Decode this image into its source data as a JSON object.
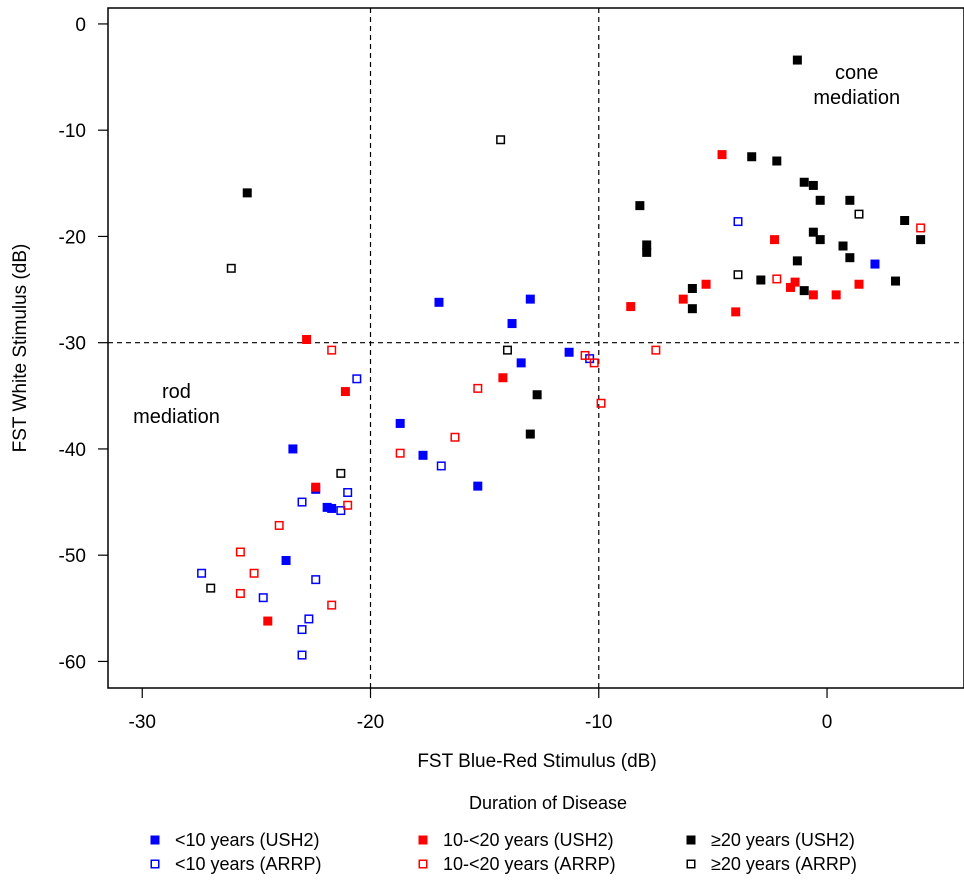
{
  "chart_data": {
    "type": "scatter",
    "xlabel": "FST Blue-Red Stimulus (dB)",
    "ylabel": "FST White Stimulus (dB)",
    "xlim": [
      -31.5,
      6
    ],
    "ylim": [
      -62.5,
      1.5
    ],
    "xticks": [
      -30,
      -20,
      -10,
      0
    ],
    "yticks": [
      0,
      -10,
      -20,
      -30,
      -40,
      -50,
      -60
    ],
    "reference_lines": {
      "x": [
        -20,
        -10
      ],
      "y": [
        -30
      ],
      "style": "dashed"
    },
    "annotations": [
      {
        "lines": [
          "cone",
          "mediation"
        ],
        "x": 1.3,
        "y": -5.2
      },
      {
        "lines": [
          "rod",
          "mediation"
        ],
        "x": -28.5,
        "y": -35.2
      }
    ],
    "legend": {
      "title": "Duration of Disease",
      "placement": "bottom",
      "entries": [
        "<10 years (USH2)",
        "10-<20 years (USH2)",
        "≥20 years (USH2)",
        "<10 years (ARRP)",
        "10-<20 years (ARRP)",
        "≥20 years (ARRP)"
      ]
    },
    "series": [
      {
        "name": "<10 years (USH2)",
        "color": "#0000ff",
        "marker": "filled-square",
        "points": [
          [
            -23.4,
            -40
          ],
          [
            -23.7,
            -50.5
          ],
          [
            -22.4,
            -43.8
          ],
          [
            -21.9,
            -45.5
          ],
          [
            -21.7,
            -45.6
          ],
          [
            -18.7,
            -37.6
          ],
          [
            -17.7,
            -40.6
          ],
          [
            -17.0,
            -26.2
          ],
          [
            -15.3,
            -43.5
          ],
          [
            -13.8,
            -28.2
          ],
          [
            -13.4,
            -31.9
          ],
          [
            -13.0,
            -25.9
          ],
          [
            -11.3,
            -30.9
          ],
          [
            2.1,
            -22.6
          ]
        ]
      },
      {
        "name": "<10 years (ARRP)",
        "color": "#0000ff",
        "marker": "open-square",
        "points": [
          [
            -20.6,
            -33.4
          ],
          [
            -16.9,
            -41.6
          ],
          [
            -21.0,
            -44.1
          ],
          [
            -21.3,
            -45.8
          ],
          [
            -23.0,
            -45
          ],
          [
            -22.4,
            -52.3
          ],
          [
            -24.7,
            -54
          ],
          [
            -22.7,
            -56
          ],
          [
            -23.0,
            -57
          ],
          [
            -23.0,
            -59.4
          ],
          [
            -27.4,
            -51.7
          ],
          [
            -10.4,
            -31.5
          ],
          [
            -3.9,
            -18.6
          ]
        ]
      },
      {
        "name": "10-<20 years (USH2)",
        "color": "#ff0000",
        "marker": "filled-square",
        "points": [
          [
            -22.8,
            -29.7
          ],
          [
            -21.1,
            -34.6
          ],
          [
            -22.4,
            -43.6
          ],
          [
            -24.5,
            -56.2
          ],
          [
            -14.2,
            -33.3
          ],
          [
            -8.6,
            -26.6
          ],
          [
            -6.3,
            -25.9
          ],
          [
            -5.3,
            -24.5
          ],
          [
            -4.6,
            -12.3
          ],
          [
            -4.0,
            -27.1
          ],
          [
            -2.3,
            -20.3
          ],
          [
            -1.6,
            -24.8
          ],
          [
            -1.4,
            -24.3
          ],
          [
            -0.6,
            -25.5
          ],
          [
            0.4,
            -25.5
          ],
          [
            1.4,
            -24.5
          ]
        ]
      },
      {
        "name": "10-<20 years (ARRP)",
        "color": "#ff0000",
        "marker": "open-square",
        "points": [
          [
            -21.7,
            -30.7
          ],
          [
            -24.0,
            -47.2
          ],
          [
            -21.0,
            -45.3
          ],
          [
            -25.7,
            -49.7
          ],
          [
            -25.1,
            -51.7
          ],
          [
            -25.7,
            -53.6
          ],
          [
            -21.7,
            -54.7
          ],
          [
            -18.7,
            -40.4
          ],
          [
            -16.3,
            -38.9
          ],
          [
            -15.3,
            -34.3
          ],
          [
            -10.6,
            -31.2
          ],
          [
            -10.2,
            -31.9
          ],
          [
            -9.9,
            -35.7
          ],
          [
            -7.5,
            -30.7
          ],
          [
            -2.2,
            -24
          ],
          [
            4.1,
            -19.2
          ]
        ]
      },
      {
        "name": "≥20 years (USH2)",
        "color": "#000000",
        "marker": "filled-square",
        "points": [
          [
            -25.4,
            -15.9
          ],
          [
            -12.7,
            -34.9
          ],
          [
            -13.0,
            -38.6
          ],
          [
            -8.2,
            -17.1
          ],
          [
            -7.9,
            -20.8
          ],
          [
            -7.9,
            -21.5
          ],
          [
            -5.9,
            -24.9
          ],
          [
            -5.9,
            -26.8
          ],
          [
            -3.3,
            -12.5
          ],
          [
            -2.9,
            -24.1
          ],
          [
            -2.2,
            -12.9
          ],
          [
            -1.3,
            -3.4
          ],
          [
            -1.3,
            -22.3
          ],
          [
            -1.0,
            -25.1
          ],
          [
            -1.0,
            -14.9
          ],
          [
            -0.6,
            -15.2
          ],
          [
            -0.6,
            -19.6
          ],
          [
            -0.3,
            -16.6
          ],
          [
            -0.3,
            -20.3
          ],
          [
            0.7,
            -20.9
          ],
          [
            1.0,
            -16.6
          ],
          [
            1.0,
            -22
          ],
          [
            3.0,
            -24.2
          ],
          [
            3.4,
            -18.5
          ],
          [
            4.1,
            -20.3
          ]
        ]
      },
      {
        "name": "≥20 years (ARRP)",
        "color": "#000000",
        "marker": "open-square",
        "points": [
          [
            -26.1,
            -23
          ],
          [
            -27.0,
            -53.1
          ],
          [
            -21.3,
            -42.3
          ],
          [
            -14.3,
            -10.9
          ],
          [
            -14.0,
            -30.7
          ],
          [
            -3.9,
            -23.6
          ],
          [
            1.4,
            -17.9
          ]
        ]
      }
    ]
  }
}
